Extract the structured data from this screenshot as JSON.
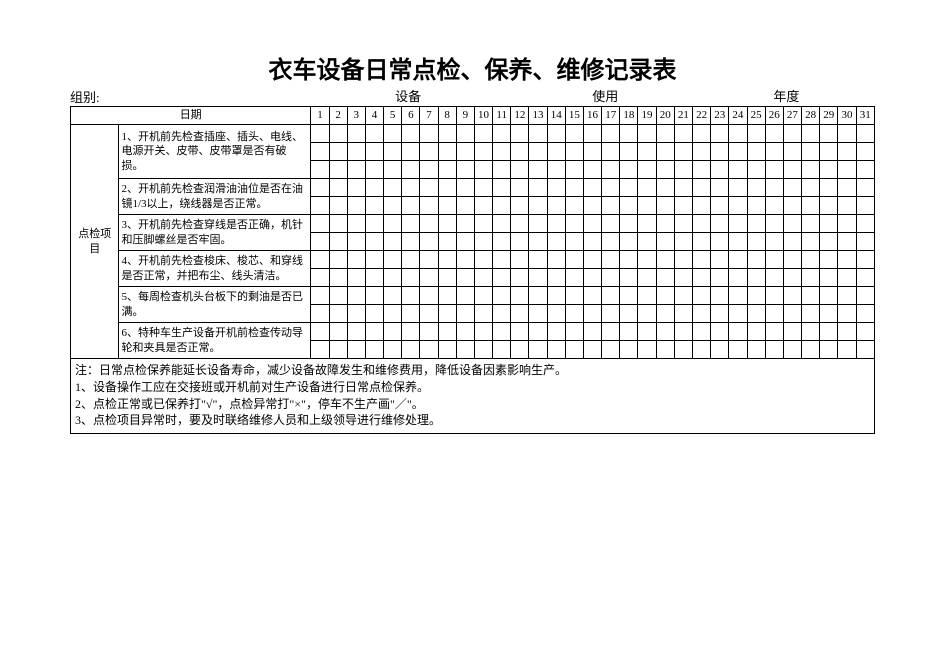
{
  "title": "衣车设备日常点检、保养、维修记录表",
  "header": {
    "group_label": "组别:",
    "equipment_label": "设备",
    "use_label": "使用",
    "year_label": "年度"
  },
  "table": {
    "date_header": "日期",
    "side_label": "点检项目",
    "days": [
      "1",
      "2",
      "3",
      "4",
      "5",
      "6",
      "7",
      "8",
      "9",
      "10",
      "11",
      "12",
      "13",
      "14",
      "15",
      "16",
      "17",
      "18",
      "19",
      "20",
      "21",
      "22",
      "23",
      "24",
      "25",
      "26",
      "27",
      "28",
      "29",
      "30",
      "31"
    ],
    "items": [
      {
        "text": "1、开机前先检查插座、插头、电线、电源开关、皮带、皮带罩是否有破损。",
        "rows": 3
      },
      {
        "text": "2、开机前先检查润滑油油位是否在油镜1/3以上，绕线器是否正常。",
        "rows": 2
      },
      {
        "text": "3、开机前先检查穿线是否正确，机针和压脚螺丝是否牢固。",
        "rows": 2
      },
      {
        "text": "4、开机前先检查梭床、梭芯、和穿线是否正常，并把布尘、线头清洁。",
        "rows": 2
      },
      {
        "text": "5、每周检查机头台板下的剩油是否已满。",
        "rows": 2
      },
      {
        "text": "6、特种车生产设备开机前检查传动导轮和夹具是否正常。",
        "rows": 2
      }
    ]
  },
  "notes": [
    "注：日常点检保养能延长设备寿命，减少设备故障发生和维修费用，降低设备因素影响生产。",
    "1、设备操作工应在交接班或开机前对生产设备进行日常点检保养。",
    "2、点检正常或已保养打\"√\"，点检异常打\"×\"，停车不生产画\"／\"。",
    "3、点检项目异常时，要及时联络维修人员和上级领导进行维修处理。"
  ]
}
